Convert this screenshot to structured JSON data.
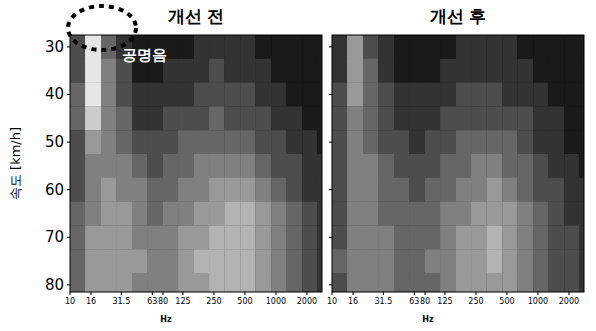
{
  "chart_data": [
    {
      "type": "heatmap",
      "title": "개선 전",
      "annotation": "공명음",
      "xlabel": "Hz",
      "ylabel": "속도 [km/h]",
      "log": "x",
      "grid": false,
      "xlim": [
        10,
        2800
      ],
      "ylim": [
        27.5,
        81.5
      ],
      "xticks": [
        10,
        16,
        31.5,
        63,
        80,
        125,
        250,
        500,
        1000,
        2000
      ],
      "yticks": [
        30,
        40,
        50,
        60,
        70,
        80
      ],
      "color_range": [
        0,
        10
      ],
      "x_edges": [
        10,
        14,
        20,
        28,
        40,
        56,
        80,
        112,
        160,
        224,
        315,
        450,
        630,
        900,
        1250,
        1800,
        2500,
        2800
      ],
      "y_edges": [
        27.5,
        32.5,
        37.5,
        42.5,
        47.5,
        52.5,
        57.5,
        62.5,
        67.5,
        72.5,
        77.5,
        82.5
      ],
      "cells": [
        [
          3,
          9,
          4,
          2,
          1,
          1,
          1,
          1,
          2,
          2,
          2,
          2,
          1,
          1,
          1,
          1,
          1
        ],
        [
          3,
          9,
          5,
          3,
          1,
          1,
          2,
          2,
          2,
          3,
          2,
          2,
          2,
          1,
          1,
          1,
          1
        ],
        [
          4,
          9,
          5,
          3,
          2,
          2,
          2,
          2,
          3,
          3,
          3,
          3,
          2,
          2,
          1,
          1,
          1
        ],
        [
          4,
          8,
          5,
          4,
          2,
          2,
          3,
          3,
          3,
          4,
          3,
          3,
          3,
          2,
          2,
          1,
          1
        ],
        [
          3,
          6,
          5,
          4,
          3,
          3,
          3,
          4,
          4,
          4,
          4,
          4,
          3,
          3,
          2,
          2,
          1
        ],
        [
          3,
          5,
          5,
          5,
          4,
          3,
          4,
          4,
          5,
          5,
          5,
          5,
          4,
          3,
          3,
          2,
          2
        ],
        [
          3,
          5,
          6,
          5,
          5,
          4,
          4,
          5,
          5,
          6,
          6,
          6,
          5,
          4,
          3,
          2,
          2
        ],
        [
          4,
          5,
          6,
          6,
          5,
          4,
          5,
          5,
          6,
          6,
          7,
          7,
          6,
          5,
          4,
          3,
          2
        ],
        [
          4,
          6,
          6,
          6,
          5,
          5,
          5,
          6,
          6,
          7,
          7,
          7,
          6,
          5,
          4,
          3,
          2
        ],
        [
          4,
          6,
          6,
          6,
          6,
          5,
          5,
          6,
          7,
          7,
          7,
          7,
          6,
          5,
          4,
          3,
          2
        ],
        [
          4,
          6,
          6,
          6,
          5,
          5,
          5,
          6,
          6,
          7,
          7,
          7,
          6,
          5,
          4,
          3,
          2
        ]
      ]
    },
    {
      "type": "heatmap",
      "title": "개선 후",
      "xlabel": "Hz",
      "log": "x",
      "grid": false,
      "tick_labels": "x",
      "xlim": [
        10,
        2800
      ],
      "ylim": [
        27.5,
        81.5
      ],
      "xticks": [
        10,
        16,
        31.5,
        63,
        80,
        125,
        250,
        500,
        1000,
        2000
      ],
      "yticks": [
        30,
        40,
        50,
        60,
        70,
        80
      ],
      "color_range": [
        0,
        10
      ],
      "x_edges": [
        10,
        14,
        20,
        28,
        40,
        56,
        80,
        112,
        160,
        224,
        315,
        450,
        630,
        900,
        1250,
        1800,
        2500,
        2800
      ],
      "y_edges": [
        27.5,
        32.5,
        37.5,
        42.5,
        47.5,
        52.5,
        57.5,
        62.5,
        67.5,
        72.5,
        77.5,
        82.5
      ],
      "cells": [
        [
          2,
          6,
          3,
          2,
          1,
          1,
          1,
          1,
          2,
          2,
          2,
          2,
          1,
          1,
          1,
          1,
          1
        ],
        [
          2,
          6,
          4,
          2,
          1,
          1,
          1,
          2,
          2,
          2,
          2,
          2,
          2,
          1,
          1,
          1,
          1
        ],
        [
          3,
          6,
          4,
          3,
          2,
          2,
          2,
          2,
          3,
          3,
          3,
          2,
          2,
          2,
          1,
          1,
          1
        ],
        [
          3,
          5,
          4,
          3,
          2,
          2,
          2,
          3,
          3,
          3,
          3,
          3,
          3,
          2,
          2,
          1,
          1
        ],
        [
          3,
          5,
          4,
          3,
          3,
          2,
          3,
          3,
          4,
          4,
          4,
          4,
          3,
          2,
          2,
          1,
          1
        ],
        [
          3,
          5,
          5,
          4,
          3,
          3,
          3,
          4,
          4,
          5,
          5,
          4,
          4,
          3,
          2,
          2,
          1
        ],
        [
          3,
          5,
          5,
          4,
          4,
          3,
          4,
          4,
          5,
          5,
          6,
          5,
          4,
          3,
          3,
          2,
          2
        ],
        [
          3,
          5,
          5,
          4,
          4,
          4,
          4,
          5,
          5,
          6,
          6,
          6,
          5,
          4,
          3,
          2,
          2
        ],
        [
          3,
          5,
          5,
          5,
          4,
          4,
          4,
          5,
          6,
          6,
          7,
          6,
          5,
          4,
          3,
          3,
          2
        ],
        [
          4,
          5,
          5,
          5,
          4,
          4,
          5,
          5,
          6,
          6,
          7,
          6,
          5,
          4,
          3,
          3,
          2
        ],
        [
          3,
          5,
          5,
          5,
          4,
          4,
          4,
          5,
          6,
          6,
          6,
          6,
          5,
          4,
          3,
          3,
          2
        ]
      ]
    }
  ]
}
